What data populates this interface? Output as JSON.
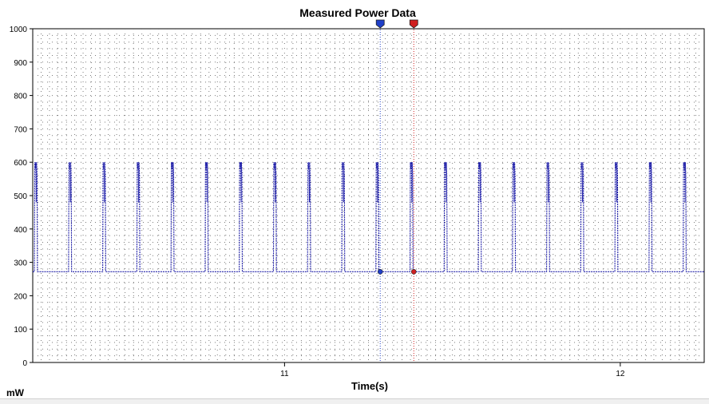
{
  "chart_data": {
    "type": "line",
    "title": "Measured Power Data",
    "xlabel": "Time(s)",
    "ylabel": "mW",
    "xlim": [
      10.25,
      12.25
    ],
    "ylim": [
      0,
      1000
    ],
    "x_ticks": [
      11,
      12
    ],
    "x_tick_labels": [
      "11",
      "12"
    ],
    "y_ticks": [
      0,
      100,
      200,
      300,
      400,
      500,
      600,
      700,
      800,
      900,
      1000
    ],
    "y_tick_labels": [
      "0",
      "100",
      "200",
      "300",
      "400",
      "500",
      "600",
      "700",
      "800",
      "900",
      "1000"
    ],
    "grid": true,
    "line_style": "dotted",
    "series": [
      {
        "color": "#1f1fa8",
        "pattern": {
          "baseline_mw": 272,
          "peak_mw": 600,
          "first_pulse_start_s": 10.255,
          "pulse_period_s": 0.1017,
          "pulse_count": 20,
          "pulse_width_s": 0.009
        }
      }
    ],
    "cursors": [
      {
        "name": "cursor-1",
        "x": 11.285,
        "y": 272,
        "color": "#1f3fc8"
      },
      {
        "name": "cursor-2",
        "x": 11.385,
        "y": 272,
        "color": "#d02020"
      }
    ]
  }
}
